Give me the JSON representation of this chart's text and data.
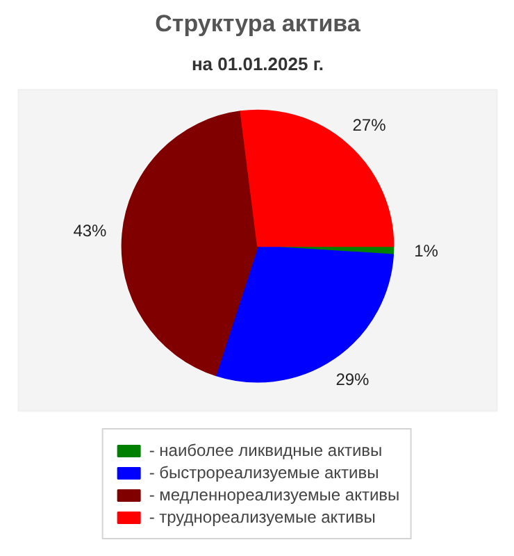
{
  "chart_data": {
    "type": "pie",
    "title": "Структура актива",
    "subtitle": "на 01.01.2025 г.",
    "categories": [
      "- наиболее ликвидные активы",
      "- быстрореализуемые активы",
      "- медленнореализуемые активы",
      "- труднореализуемые активы"
    ],
    "values": [
      1,
      29,
      43,
      27
    ],
    "value_labels": [
      "1%",
      "29%",
      "43%",
      "27%"
    ],
    "colors": [
      "#008000",
      "#0000ff",
      "#800000",
      "#ff0000"
    ],
    "legend": "bottom"
  }
}
